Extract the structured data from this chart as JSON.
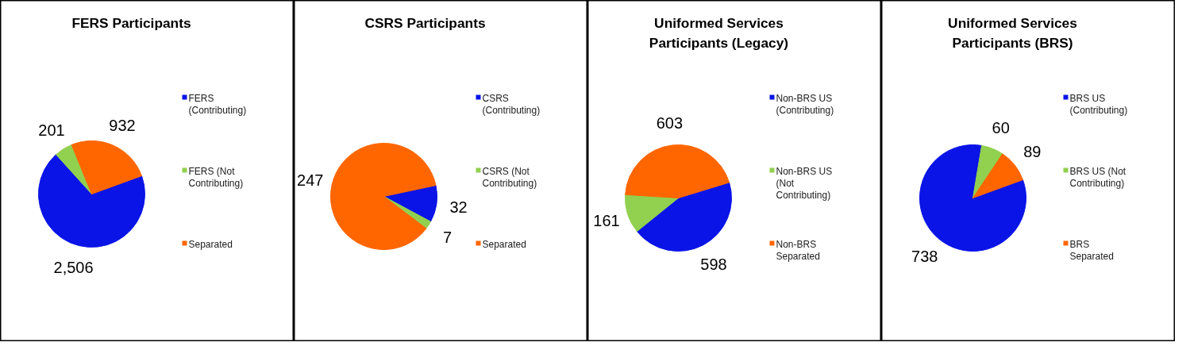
{
  "chart_data": [
    {
      "type": "pie",
      "title": "FERS Participants",
      "categories": [
        "FERS (Contributing)",
        "FERS (Not Contributing)",
        "Separated"
      ],
      "values": [
        2506,
        201,
        932
      ],
      "value_labels": [
        "2,506",
        "201",
        "932"
      ],
      "colors": [
        "#0a14e6",
        "#92d050",
        "#ff6600"
      ],
      "data_labels": true,
      "legend": "right"
    },
    {
      "type": "pie",
      "title": "CSRS Participants",
      "categories": [
        "CSRS (Contributing)",
        "CSRS (Not Contributing)",
        "Separated"
      ],
      "values": [
        32,
        7,
        247
      ],
      "colors": [
        "#0a14e6",
        "#92d050",
        "#ff6600"
      ],
      "data_labels": true,
      "legend": "right"
    },
    {
      "type": "pie",
      "title": "Uniformed Services Participants (Legacy)",
      "categories": [
        "Non-BRS US (Contributing)",
        "Non-BRS US (Not Contributing)",
        "Non-BRS Separated"
      ],
      "values": [
        598,
        161,
        603
      ],
      "colors": [
        "#0a14e6",
        "#92d050",
        "#ff6600"
      ],
      "data_labels": true,
      "legend": "right"
    },
    {
      "type": "pie",
      "title": "Uniformed Services Participants (BRS)",
      "categories": [
        "BRS US (Contributing)",
        "BRS US (Not Contributing)",
        "BRS Separated"
      ],
      "values": [
        738,
        60,
        89
      ],
      "colors": [
        "#0a14e6",
        "#92d050",
        "#ff6600"
      ],
      "data_labels": true,
      "legend": "right"
    }
  ]
}
